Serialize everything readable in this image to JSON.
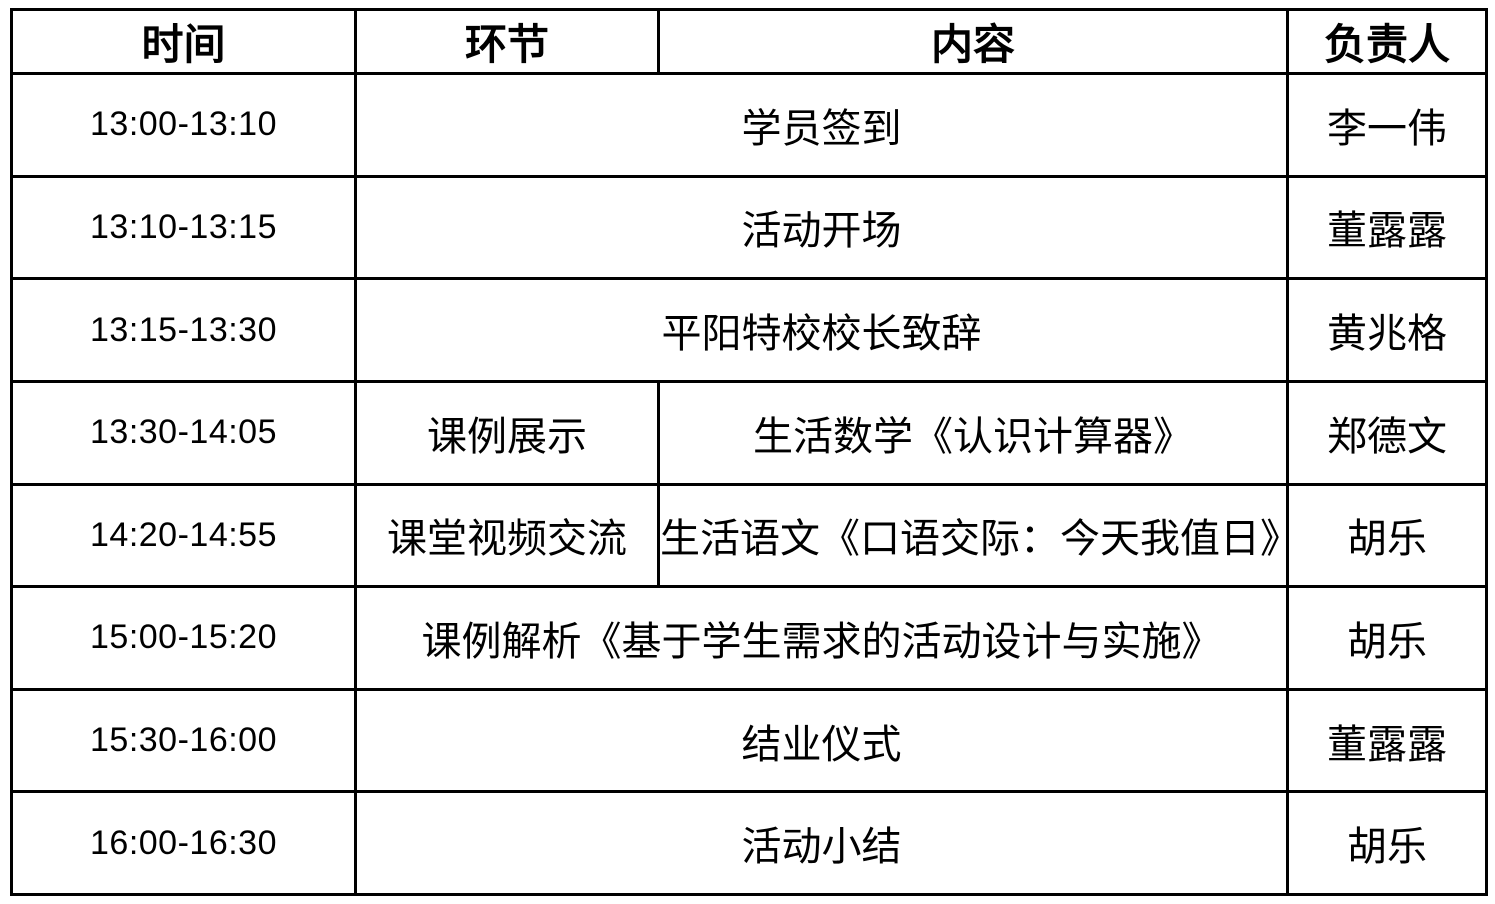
{
  "table": {
    "headers": [
      {
        "label": "时间"
      },
      {
        "label": "环节"
      },
      {
        "label": "内容"
      },
      {
        "label": "负责人"
      }
    ],
    "rows": [
      {
        "time": "13:00-13:10",
        "content": "学员签到",
        "owner": "李一伟"
      },
      {
        "time": "13:10-13:15",
        "content": "活动开场",
        "owner": "董露露"
      },
      {
        "time": "13:15-13:30",
        "content": "平阳特校校长致辞",
        "owner": "黄兆格"
      },
      {
        "time": "13:30-14:05",
        "segment": "课例展示",
        "content": "生活数学《认识计算器》",
        "owner": "郑德文"
      },
      {
        "time": "14:20-14:55",
        "segment": "课堂视频交流",
        "content": "生活语文《口语交际：今天我值日》",
        "owner": "胡乐"
      },
      {
        "time": "15:00-15:20",
        "content": "课例解析《基于学生需求的活动设计与实施》",
        "owner": "胡乐"
      },
      {
        "time": "15:30-16:00",
        "content": "结业仪式",
        "owner": "董露露"
      },
      {
        "time": "16:00-16:30",
        "content": "活动小结",
        "owner": "胡乐"
      }
    ],
    "colors": {
      "border": "#000000",
      "text": "#000000",
      "background": "#ffffff"
    }
  }
}
